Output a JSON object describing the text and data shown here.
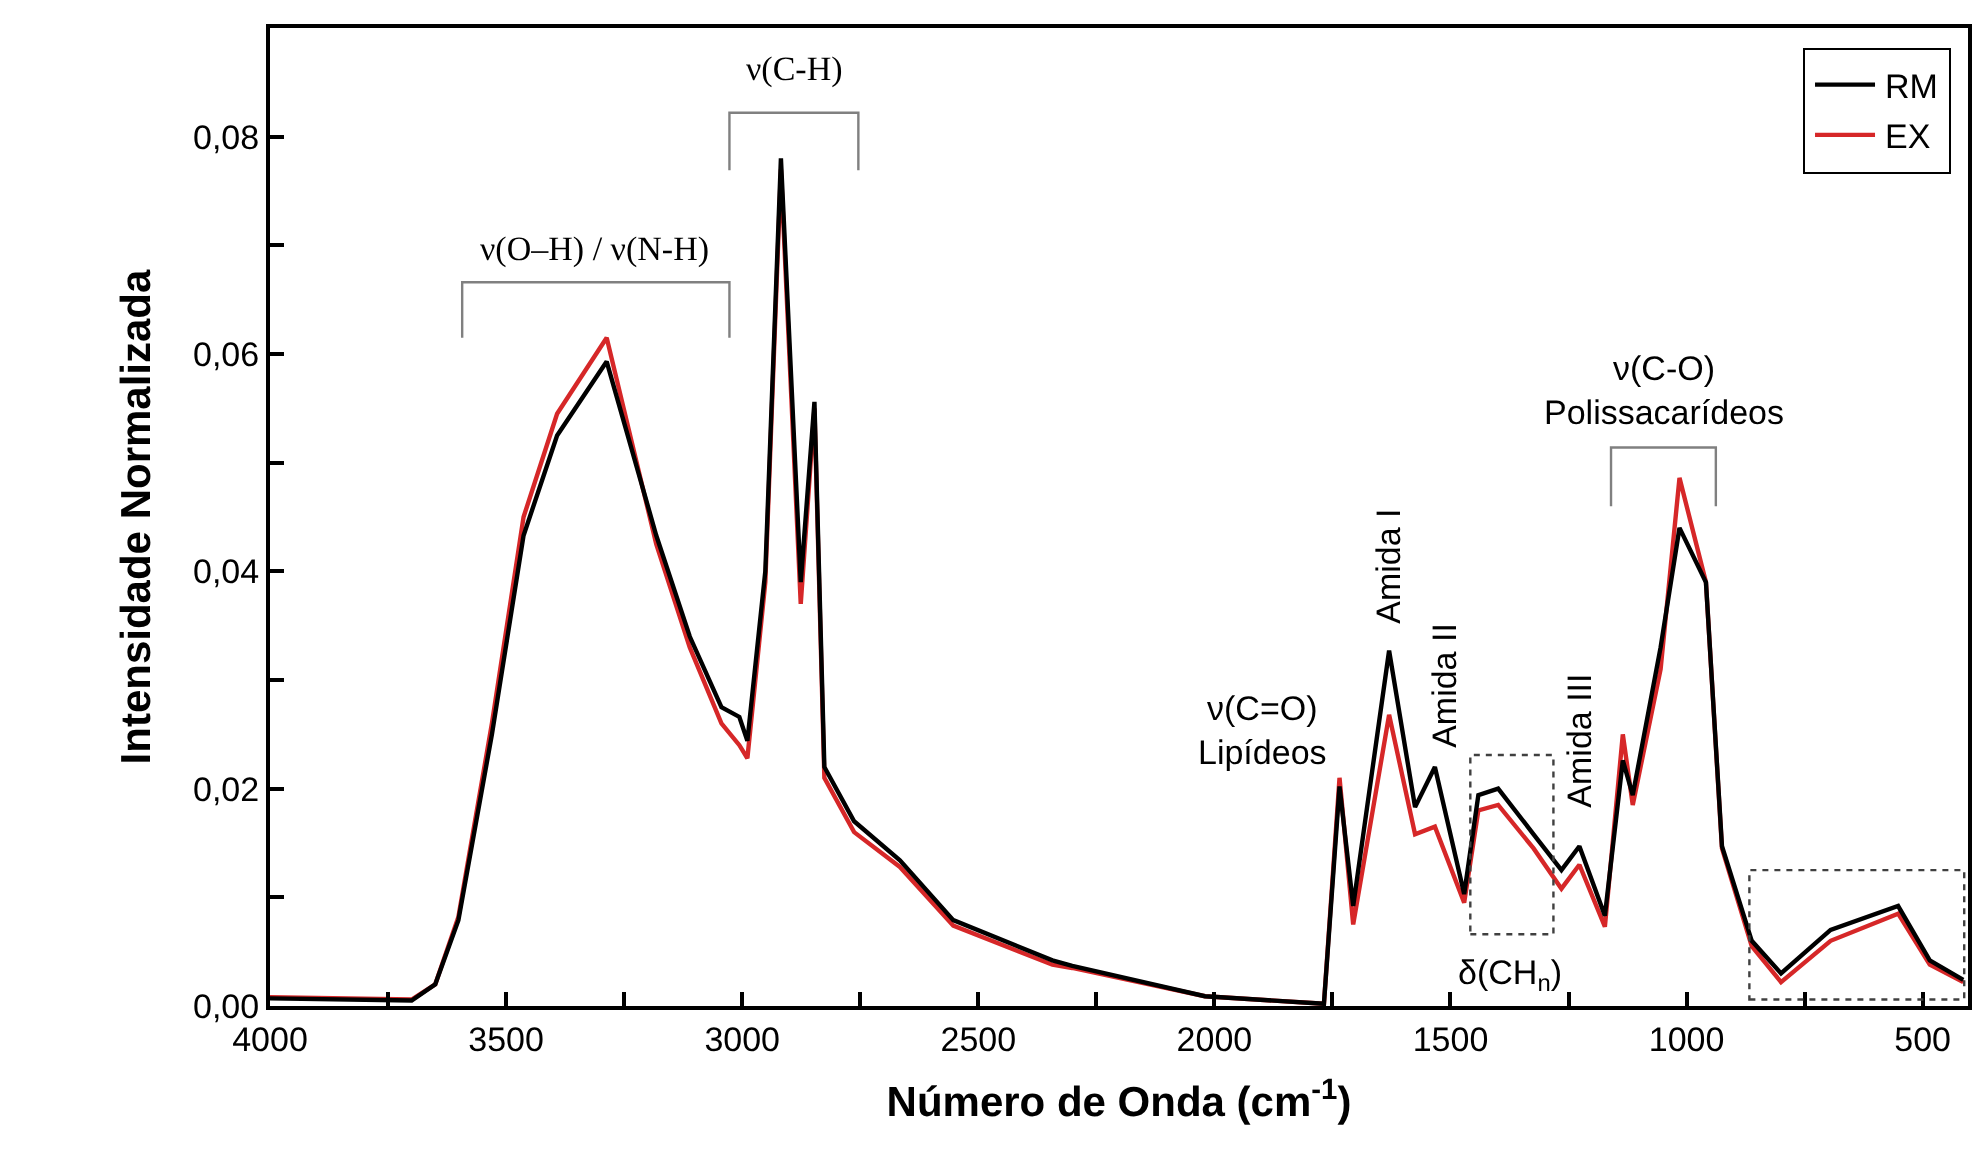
{
  "chart_data": {
    "type": "line",
    "xlabel": "Número de Onda (cm$^{-1}$)",
    "ylabel": "Intensidade Normalizada",
    "xlim": [
      4000,
      404
    ],
    "ylim": [
      0,
      0.09
    ],
    "xticks": [
      4000,
      {
        "value": 3750,
        "label": null
      },
      3500,
      {
        "value": 3250,
        "label": null
      },
      3000,
      {
        "value": 2750,
        "label": null
      },
      2500,
      {
        "value": 2250,
        "label": null
      },
      2000,
      {
        "value": 1750,
        "label": null
      },
      1500,
      {
        "value": 1250,
        "label": null
      },
      1000,
      {
        "value": 750,
        "label": null
      },
      500
    ],
    "yticks": [
      {
        "value": 0,
        "label": "0,00"
      },
      {
        "value": 0.01,
        "label": null
      },
      {
        "value": 0.02,
        "label": "0,02"
      },
      {
        "value": 0.03,
        "label": null
      },
      {
        "value": 0.04,
        "label": "0,04"
      },
      {
        "value": 0.05,
        "label": null
      },
      {
        "value": 0.06,
        "label": "0,06"
      },
      {
        "value": 0.07,
        "label": null
      },
      {
        "value": 0.08,
        "label": "0,08"
      }
    ],
    "legend": "top right",
    "marker": "none",
    "line_style": "solid",
    "series": [
      {
        "name": "EX",
        "color": "#d62728",
        "x": [
          4000,
          3700,
          3650,
          3601,
          3530,
          3463,
          3392,
          3287,
          3182,
          3111,
          3044,
          3006,
          2989,
          2951,
          2918,
          2876,
          2847,
          2826,
          2763,
          2666,
          2553,
          2343,
          2301,
          2020,
          1768,
          1735,
          1706,
          1630,
          1575,
          1533,
          1471,
          1441,
          1399,
          1324,
          1265,
          1227,
          1173,
          1135,
          1114,
          1055,
          1015,
          959,
          925,
          862,
          800,
          695,
          552,
          485,
          414
        ],
        "values": [
          0.0008,
          0.0006,
          0.002,
          0.0082,
          0.026,
          0.045,
          0.0545,
          0.0615,
          0.0425,
          0.033,
          0.026,
          0.024,
          0.0228,
          0.039,
          0.077,
          0.037,
          0.055,
          0.021,
          0.016,
          0.0128,
          0.0074,
          0.0038,
          0.0035,
          0.0009,
          0.0002,
          0.021,
          0.0075,
          0.0268,
          0.0158,
          0.0165,
          0.0095,
          0.018,
          0.0185,
          0.0145,
          0.0108,
          0.013,
          0.0073,
          0.025,
          0.0185,
          0.031,
          0.0486,
          0.039,
          0.0145,
          0.0055,
          0.0022,
          0.006,
          0.0085,
          0.0038,
          0.0022
        ]
      },
      {
        "name": "RM",
        "color": "#000000",
        "x": [
          4000,
          3700,
          3650,
          3601,
          3530,
          3463,
          3392,
          3287,
          3182,
          3111,
          3044,
          3006,
          2989,
          2951,
          2918,
          2876,
          2847,
          2826,
          2763,
          2666,
          2553,
          2343,
          2301,
          2020,
          1768,
          1735,
          1706,
          1630,
          1575,
          1533,
          1471,
          1441,
          1399,
          1324,
          1265,
          1227,
          1173,
          1135,
          1114,
          1055,
          1015,
          959,
          925,
          862,
          800,
          695,
          552,
          485,
          414
        ],
        "values": [
          0.0007,
          0.0005,
          0.002,
          0.0079,
          0.025,
          0.0433,
          0.0525,
          0.0593,
          0.0433,
          0.034,
          0.0275,
          0.0266,
          0.0244,
          0.04,
          0.078,
          0.039,
          0.0556,
          0.022,
          0.017,
          0.0134,
          0.0079,
          0.0042,
          0.0037,
          0.0009,
          0.0002,
          0.0202,
          0.0092,
          0.0327,
          0.0183,
          0.022,
          0.0103,
          0.0194,
          0.02,
          0.0158,
          0.0125,
          0.0147,
          0.0083,
          0.0226,
          0.0194,
          0.033,
          0.044,
          0.039,
          0.0147,
          0.006,
          0.003,
          0.007,
          0.0092,
          0.0042,
          0.0024
        ]
      },
      {
        "color": "#808080",
        "x": [
          3593,
          3593,
          3027,
          3027
        ],
        "values": [
          0.0615,
          0.0666,
          0.0666,
          0.0615
        ]
      },
      {
        "color": "#808080",
        "x": [
          3027,
          3027,
          2754,
          2754
        ],
        "values": [
          0.0769,
          0.0822,
          0.0822,
          0.0769
        ]
      },
      {
        "color": "#808080",
        "x": [
          1160,
          1160,
          938,
          938
        ],
        "values": [
          0.046,
          0.0514,
          0.0514,
          0.046
        ]
      }
    ],
    "annotations": [
      {
        "text": "ν(O–H) / ν(N-H)",
        "x": 3287,
        "y": 0.0593
      },
      {
        "text": "ν(C-H)",
        "x": 2918,
        "y": 0.078
      },
      {
        "text": "ν(C-O)\nPolissacarídeos",
        "x": 1015,
        "y": 0.044
      },
      {
        "text": "ν(C=O)\nLipídeos",
        "x": 1735,
        "y": 0.0202
      },
      {
        "text": "Amida I",
        "x": 1630,
        "y": 0.0327
      },
      {
        "text": "Amida II",
        "x": 1533,
        "y": 0.022
      },
      {
        "text": "Amida III",
        "x": 1227,
        "y": 0.0147
      },
      "δ(CH$_{n}$)"
    ]
  }
}
